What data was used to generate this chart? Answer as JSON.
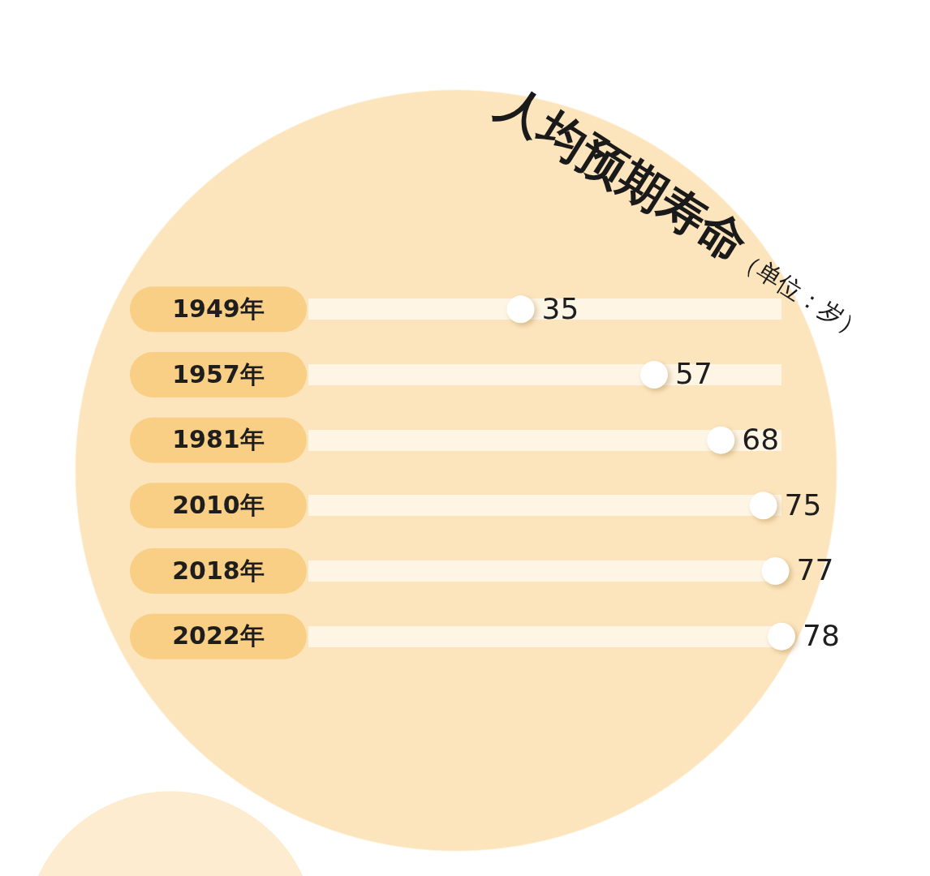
{
  "chart_data": {
    "type": "lollipop",
    "orientation": "horizontal",
    "title": "人均预期寿命",
    "subtitle": "（单位：岁）",
    "categories": [
      "1949年",
      "1957年",
      "1981年",
      "2010年",
      "2018年",
      "2022年"
    ],
    "values": [
      35,
      57,
      68,
      75,
      77,
      78
    ],
    "color": "#ffffff",
    "data_labels": true,
    "legend": false,
    "grid": "y"
  }
}
